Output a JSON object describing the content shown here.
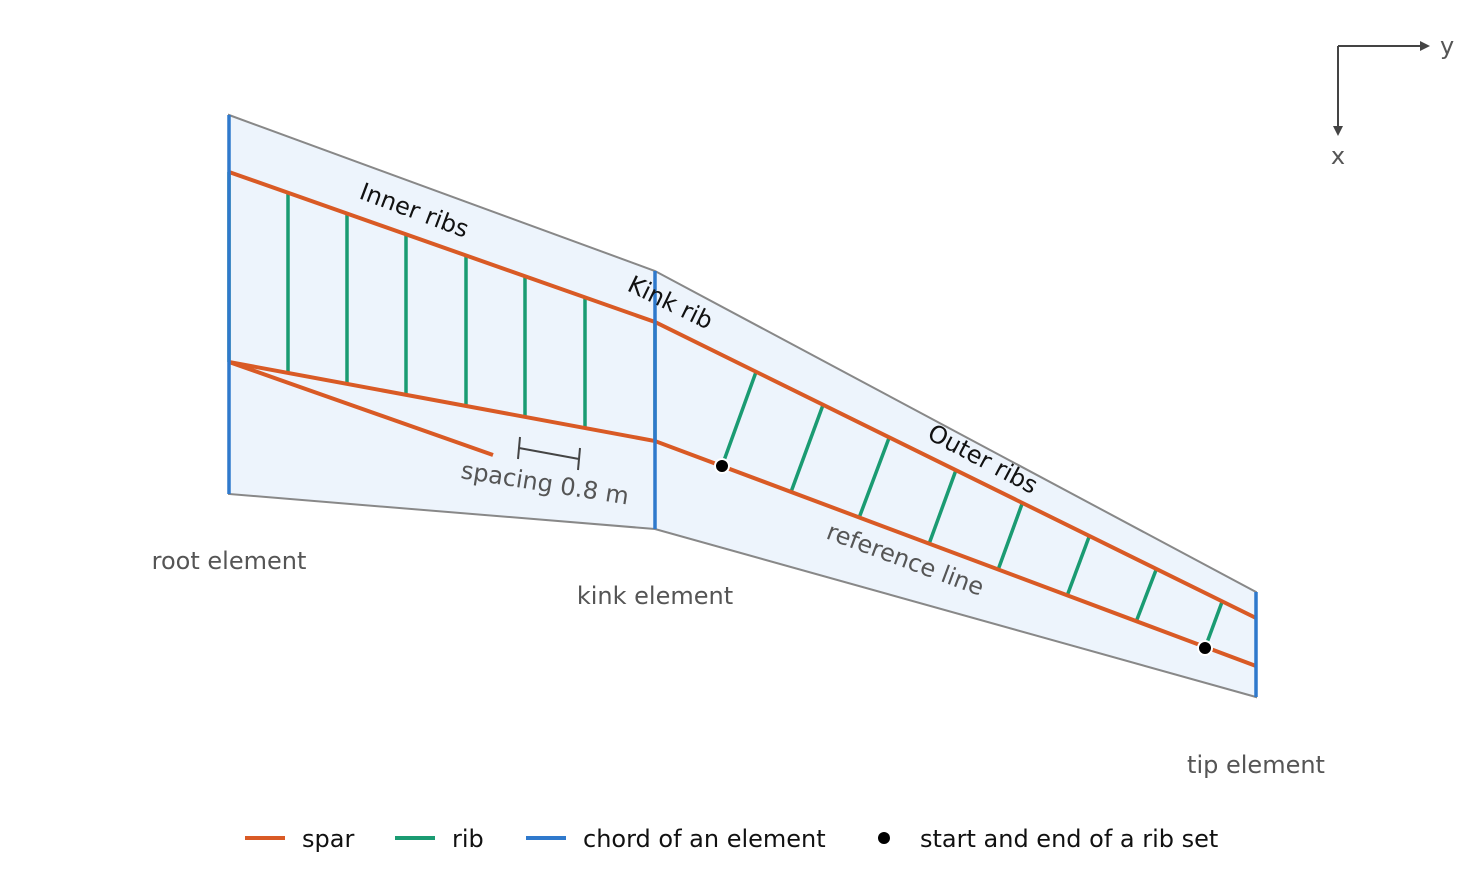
{
  "diagram": {
    "labels": {
      "inner_ribs": "Inner ribs",
      "kink_rib": "Kink rib",
      "outer_ribs": "Outer ribs",
      "spacing": "spacing 0.8 m",
      "reference_line": "reference line",
      "root_element": "root element",
      "kink_element": "kink element",
      "tip_element": "tip element"
    },
    "axes": {
      "x": "x",
      "y": "y"
    },
    "legend": [
      {
        "label": "spar",
        "kind": "line",
        "color": "#d95a25"
      },
      {
        "label": "rib",
        "kind": "line",
        "color": "#1a9b72"
      },
      {
        "label": "chord of an element",
        "kind": "line",
        "color": "#2f79cc"
      },
      {
        "label": "start and end of a rib set",
        "kind": "dot",
        "color": "#000000"
      }
    ],
    "colors": {
      "spar": "#d95a25",
      "rib": "#1a9b72",
      "chord": "#2f79cc",
      "outline": "#888888",
      "fill": "#edf4fc",
      "axis": "#444444"
    }
  }
}
